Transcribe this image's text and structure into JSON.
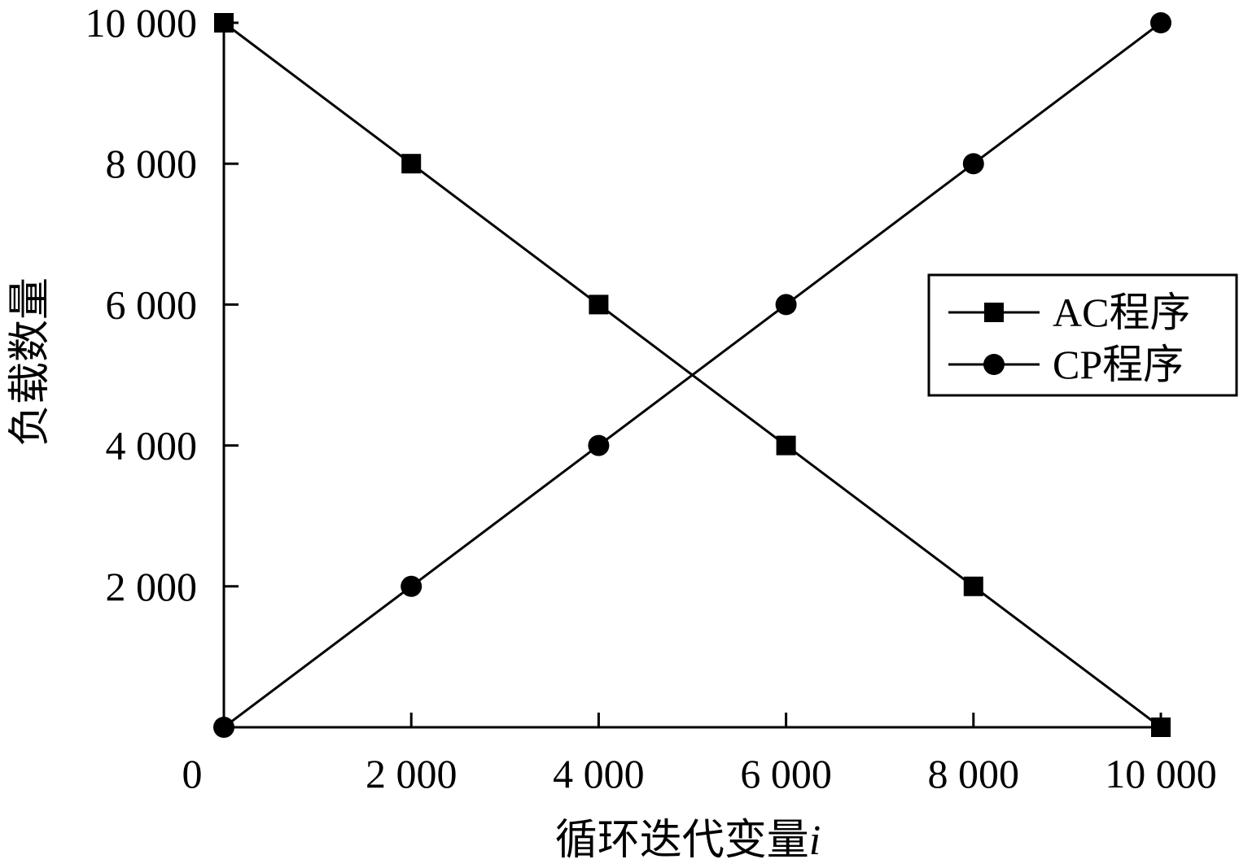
{
  "chart_data": {
    "type": "line",
    "title": "",
    "xlabel": "循环迭代变量",
    "xlabel_var": "i",
    "ylabel": "负载数量",
    "x": [
      0,
      2000,
      4000,
      6000,
      8000,
      10000
    ],
    "xlim": [
      0,
      10000
    ],
    "ylim": [
      0,
      10000
    ],
    "xticks": [
      0,
      2000,
      4000,
      6000,
      8000,
      10000
    ],
    "xtick_labels": [
      "0",
      "2 000",
      "4 000",
      "6 000",
      "8 000",
      "10 000"
    ],
    "yticks": [
      2000,
      4000,
      6000,
      8000,
      10000
    ],
    "ytick_labels": [
      "2 000",
      "4 000",
      "6 000",
      "8 000",
      "10 000"
    ],
    "grid": false,
    "legend_position": "right",
    "series": [
      {
        "name": "AC程序",
        "marker": "square",
        "color": "#000000",
        "values": [
          10000,
          8000,
          6000,
          4000,
          2000,
          0
        ]
      },
      {
        "name": "CP程序",
        "marker": "circle",
        "color": "#000000",
        "values": [
          0,
          2000,
          4000,
          6000,
          8000,
          10000
        ]
      }
    ]
  }
}
